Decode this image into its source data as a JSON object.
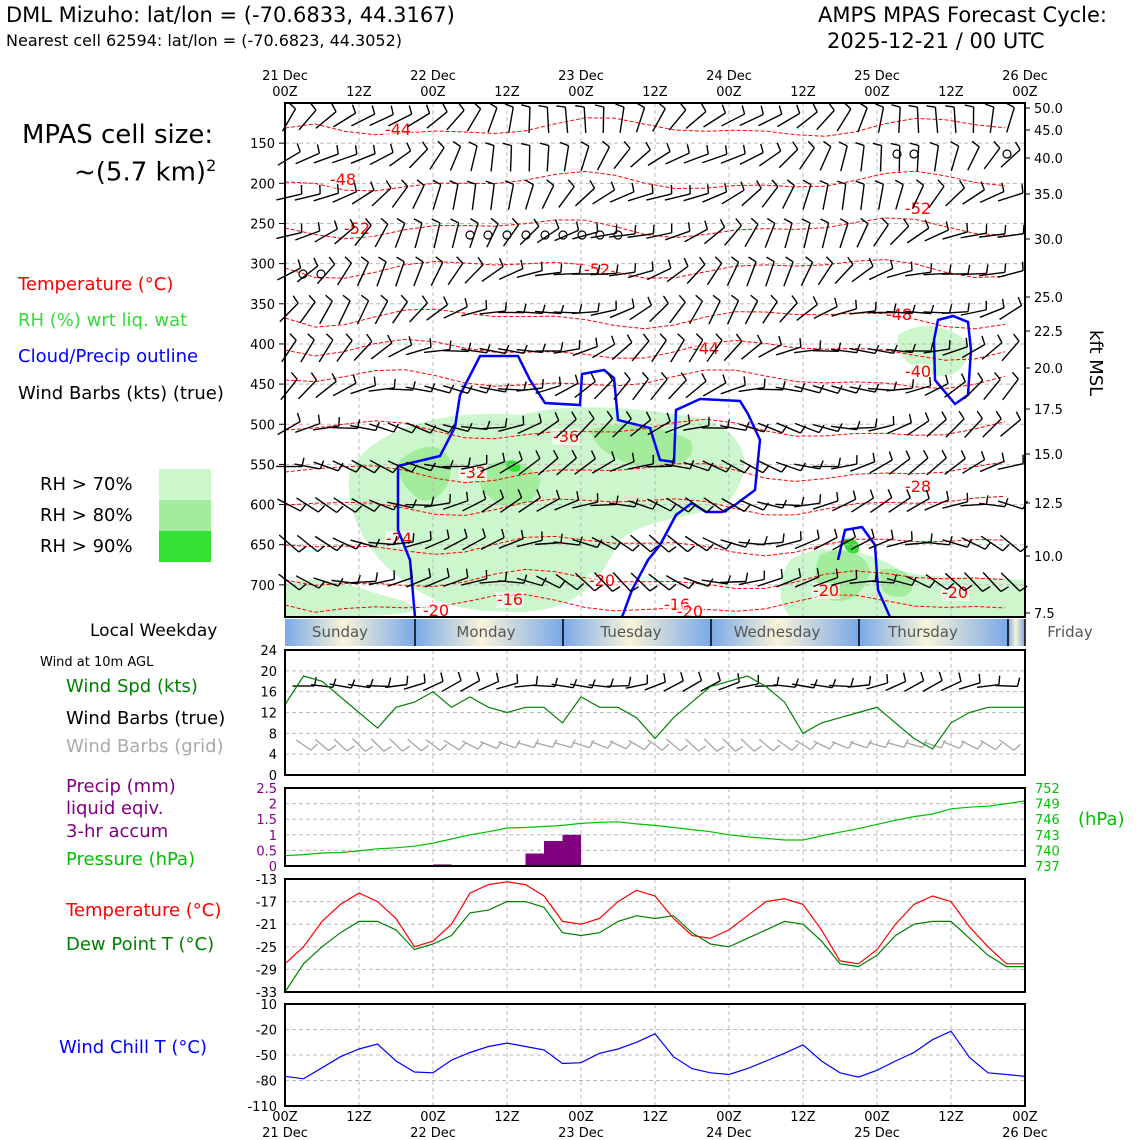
{
  "header": {
    "left_title": "DML Mizuho: lat/lon = (-70.6833, 44.3167)",
    "left_sub": "Nearest cell 62594: lat/lon = (-70.6823, 44.3052)",
    "right_title": "AMPS MPAS Forecast Cycle:",
    "right_sub": "2025-12-21 / 00 UTC"
  },
  "side": {
    "cell_size_label": "MPAS cell size:",
    "cell_size_value": "~(5.7 km)",
    "cell_size_exp": "2",
    "legend_temperature": "Temperature (°C)",
    "legend_rh": "RH (%) wrt liq. wat",
    "legend_cloud": "Cloud/Precip outline",
    "legend_barbs": "Wind Barbs (kts) (true)",
    "rh_levels": [
      "RH > 70%",
      "RH > 80%",
      "RH > 90%"
    ],
    "rh_colors": [
      "#ccf7cc",
      "#a2ec9c",
      "#35e035"
    ],
    "local_weekday_label": "Local Weekday",
    "wind10m_label": "Wind at 10m AGL",
    "legend_wind_spd": "Wind Spd (kts)",
    "legend_wind_barbs_true": "Wind Barbs (true)",
    "legend_wind_barbs_grid": "Wind Barbs (grid)",
    "legend_precip_1": "Precip (mm)",
    "legend_precip_2": "liquid eqiv.",
    "legend_precip_3": "3-hr accum",
    "legend_pressure": "Pressure (hPa)",
    "pressure_unit": "(hPa)",
    "legend_temp2": "Temperature (°C)",
    "legend_dewpoint": "Dew Point T (°C)",
    "legend_windchill": "Wind Chill T (°C)",
    "kft_label": "kft MSL"
  },
  "colors": {
    "temperature": "#ff0000",
    "dewpoint": "#008000",
    "windspd": "#008000",
    "pressure": "#00c000",
    "precip": "#800080",
    "windchill": "#0000ff",
    "cloud": "#0000ff",
    "rh_legend": "#33dd33"
  },
  "time_axis": {
    "top_labels": [
      [
        "21 Dec",
        "00Z"
      ],
      [
        "",
        "12Z"
      ],
      [
        "22 Dec",
        "00Z"
      ],
      [
        "",
        "12Z"
      ],
      [
        "23 Dec",
        "00Z"
      ],
      [
        "",
        "12Z"
      ],
      [
        "24 Dec",
        "00Z"
      ],
      [
        "",
        "12Z"
      ],
      [
        "25 Dec",
        "00Z"
      ],
      [
        "",
        "12Z"
      ],
      [
        "26 Dec",
        "00Z"
      ]
    ],
    "bottom_labels": [
      [
        "00Z",
        "21 Dec"
      ],
      [
        "12Z",
        ""
      ],
      [
        "00Z",
        "22 Dec"
      ],
      [
        "12Z",
        ""
      ],
      [
        "00Z",
        "23 Dec"
      ],
      [
        "12Z",
        ""
      ],
      [
        "00Z",
        "24 Dec"
      ],
      [
        "12Z",
        ""
      ],
      [
        "00Z",
        "25 Dec"
      ],
      [
        "12Z",
        ""
      ],
      [
        "00Z",
        "26 Dec"
      ]
    ]
  },
  "weekday_bar": {
    "days": [
      "Sunday",
      "Monday",
      "Tuesday",
      "Wednesday",
      "Thursday",
      "Friday"
    ]
  },
  "chart_data": [
    {
      "type": "contour",
      "title": "Time-height cross section",
      "pressure_ticks": [
        150,
        200,
        250,
        300,
        350,
        400,
        450,
        500,
        550,
        600,
        650,
        700
      ],
      "height_ticks_kft": [
        "50.0",
        "45.0",
        "40.0",
        "35.0",
        "30.0",
        "25.0",
        "22.5",
        "20.0",
        "17.5",
        "15.0",
        "12.5",
        "10.0",
        "7.5"
      ],
      "ylabel_right": "kft MSL",
      "temperature_contour_labels": [
        "-44",
        "-48",
        "-52",
        "-52",
        "-52",
        "-48",
        "-44",
        "-40",
        "-36",
        "-32",
        "-28",
        "-24",
        "-20",
        "-20",
        "-16",
        "-16",
        "-20",
        "-20",
        "-20"
      ]
    },
    {
      "type": "line",
      "title": "Wind at 10m AGL",
      "x_hours": [
        0,
        3,
        6,
        9,
        12,
        15,
        18,
        21,
        24,
        27,
        30,
        33,
        36,
        39,
        42,
        45,
        48,
        51,
        54,
        57,
        60,
        63,
        66,
        69,
        72,
        75,
        78,
        81,
        84,
        87,
        90,
        93,
        96,
        99,
        102,
        105,
        108,
        111,
        114,
        117,
        120
      ],
      "series": [
        {
          "name": "Wind Spd (kts)",
          "values": [
            13.5,
            19,
            18,
            15,
            12,
            9,
            13,
            14,
            16,
            13,
            15,
            13,
            12,
            13,
            13,
            10,
            15,
            13,
            13,
            11,
            7,
            11,
            14,
            17,
            18,
            19,
            17,
            14,
            8,
            10,
            11,
            12,
            13,
            10,
            7,
            5,
            10,
            12,
            13,
            13,
            13
          ]
        }
      ],
      "ylim": [
        0,
        24
      ],
      "yticks": [
        0,
        4,
        8,
        12,
        16,
        20,
        24
      ]
    },
    {
      "type": "bar+line",
      "title": "Precip and Pressure",
      "x_hours": [
        0,
        3,
        6,
        9,
        12,
        15,
        18,
        21,
        24,
        27,
        30,
        33,
        36,
        39,
        42,
        45,
        48,
        51,
        54,
        57,
        60,
        63,
        66,
        69,
        72,
        75,
        78,
        81,
        84,
        87,
        90,
        93,
        96,
        99,
        102,
        105,
        108,
        111,
        114,
        117,
        120
      ],
      "precip_mm": [
        0,
        0,
        0,
        0,
        0,
        0,
        0,
        0,
        0,
        0.05,
        0,
        0,
        0,
        0,
        0.4,
        0.8,
        1.0,
        0,
        0,
        0,
        0,
        0,
        0,
        0,
        0,
        0,
        0,
        0,
        0,
        0,
        0,
        0,
        0,
        0,
        0,
        0,
        0,
        0,
        0,
        0,
        0
      ],
      "precip_ylim": [
        0,
        2.5
      ],
      "precip_yticks": [
        0,
        0.5,
        1.0,
        1.5,
        2.0,
        2.5
      ],
      "pressure_hpa": [
        739,
        739.2,
        739.5,
        739.6,
        739.9,
        740.3,
        740.5,
        740.8,
        741.4,
        742.2,
        743.0,
        743.6,
        744.3,
        744.4,
        744.6,
        744.8,
        745.2,
        745.4,
        745.5,
        745.1,
        744.8,
        744.4,
        744.0,
        743.6,
        743.0,
        742.6,
        742.3,
        742.0,
        742.0,
        742.8,
        743.5,
        744.2,
        745.0,
        745.8,
        746.5,
        747.0,
        748.0,
        748.3,
        748.5,
        749.0,
        749.5
      ],
      "pressure_ylim": [
        737,
        752
      ],
      "pressure_yticks": [
        737,
        740,
        743,
        746,
        749,
        752
      ]
    },
    {
      "type": "line",
      "title": "Temperature and Dew Point",
      "x_hours": [
        0,
        3,
        6,
        9,
        12,
        15,
        18,
        21,
        24,
        27,
        30,
        33,
        36,
        39,
        42,
        45,
        48,
        51,
        54,
        57,
        60,
        63,
        66,
        69,
        72,
        75,
        78,
        81,
        84,
        87,
        90,
        93,
        96,
        99,
        102,
        105,
        108,
        111,
        114,
        117,
        120
      ],
      "series": [
        {
          "name": "Temperature (°C)",
          "values": [
            -28,
            -25,
            -20.5,
            -17.5,
            -15.5,
            -17,
            -20,
            -25,
            -24,
            -21,
            -15.5,
            -14,
            -13.5,
            -14,
            -16,
            -20.5,
            -21,
            -20,
            -17,
            -15,
            -16,
            -20,
            -23,
            -23.5,
            -22,
            -19.5,
            -17,
            -16.5,
            -17.5,
            -22,
            -27.5,
            -28,
            -25.5,
            -21,
            -17.5,
            -16,
            -17,
            -21.5,
            -25,
            -28,
            -28
          ]
        },
        {
          "name": "Dew Point T (°C)",
          "values": [
            -33,
            -28,
            -25,
            -22.5,
            -20.5,
            -20.5,
            -22,
            -25.5,
            -24.5,
            -23,
            -19,
            -18.5,
            -17,
            -17,
            -18,
            -22.5,
            -23,
            -22.5,
            -20.5,
            -19.5,
            -20,
            -19.5,
            -22.5,
            -24.5,
            -25,
            -23.5,
            -22,
            -20.5,
            -21,
            -24,
            -28,
            -28.5,
            -26.5,
            -23,
            -21,
            -20.5,
            -20.5,
            -23.5,
            -26.5,
            -28.5,
            -28.5
          ]
        }
      ],
      "ylim": [
        -33,
        -13
      ],
      "yticks": [
        -33,
        -29,
        -25,
        -21,
        -17,
        -13
      ]
    },
    {
      "type": "line",
      "title": "Wind Chill",
      "x_hours": [
        0,
        3,
        6,
        9,
        12,
        15,
        18,
        21,
        24,
        27,
        30,
        33,
        36,
        39,
        42,
        45,
        48,
        51,
        54,
        57,
        60,
        63,
        66,
        69,
        72,
        75,
        78,
        81,
        84,
        87,
        90,
        93,
        96,
        99,
        102,
        105,
        108,
        111,
        114,
        117,
        120
      ],
      "series": [
        {
          "name": "Wind Chill T (°C)",
          "values": [
            -75,
            -78,
            -65,
            -52,
            -43,
            -37,
            -57,
            -70,
            -71,
            -56,
            -47,
            -40,
            -36,
            -40,
            -44,
            -60,
            -59,
            -48,
            -43,
            -35,
            -25,
            -52,
            -66,
            -71,
            -73,
            -66,
            -57,
            -48,
            -38,
            -57,
            -71,
            -76,
            -68,
            -57,
            -47,
            -32,
            -22,
            -53,
            -71,
            -73,
            -75
          ]
        }
      ],
      "ylim": [
        -110,
        10
      ],
      "yticks": [
        -110,
        -80,
        -50,
        -20,
        10
      ]
    }
  ]
}
